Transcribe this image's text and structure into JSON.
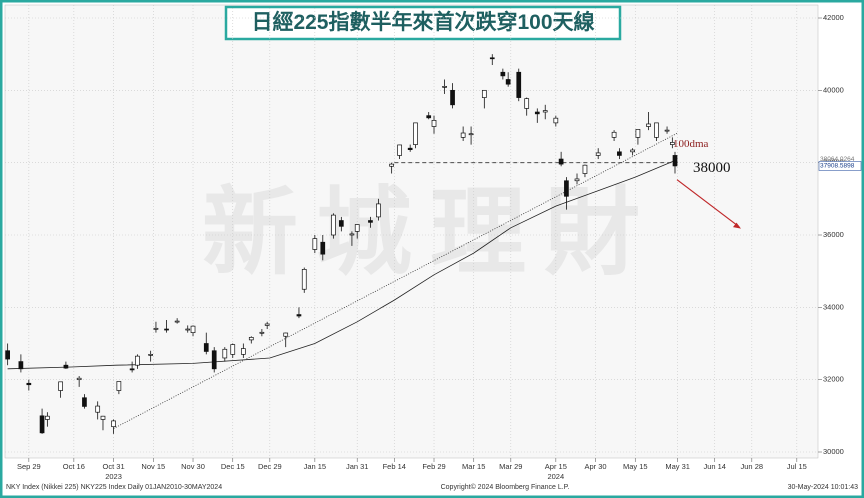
{
  "chart_data": {
    "type": "candlestick",
    "title": "日經225指數半年來首次跌穿100天線",
    "watermark": "新城理財",
    "x": [
      "2023-09-21",
      "2023-09-26",
      "2023-09-29",
      "2023-10-04",
      "2023-10-06",
      "2023-10-11",
      "2023-10-13",
      "2023-10-18",
      "2023-10-20",
      "2023-10-25",
      "2023-10-27",
      "2023-10-31",
      "2023-11-02",
      "2023-11-07",
      "2023-11-09",
      "2023-11-14",
      "2023-11-16",
      "2023-11-20",
      "2023-11-24",
      "2023-11-28",
      "2023-11-30",
      "2023-12-05",
      "2023-12-08",
      "2023-12-12",
      "2023-12-15",
      "2023-12-19",
      "2023-12-22",
      "2023-12-26",
      "2023-12-28",
      "2024-01-04",
      "2024-01-09",
      "2024-01-11",
      "2024-01-15",
      "2024-01-18",
      "2024-01-22",
      "2024-01-25",
      "2024-01-29",
      "2024-01-31",
      "2024-02-05",
      "2024-02-08",
      "2024-02-13",
      "2024-02-16",
      "2024-02-20",
      "2024-02-22",
      "2024-02-27",
      "2024-02-29",
      "2024-03-04",
      "2024-03-07",
      "2024-03-11",
      "2024-03-14",
      "2024-03-19",
      "2024-03-22",
      "2024-03-26",
      "2024-03-28",
      "2024-04-01",
      "2024-04-04",
      "2024-04-08",
      "2024-04-11",
      "2024-04-15",
      "2024-04-17",
      "2024-04-19",
      "2024-04-23",
      "2024-04-26",
      "2024-05-01",
      "2024-05-07",
      "2024-05-09",
      "2024-05-14",
      "2024-05-16",
      "2024-05-20",
      "2024-05-23",
      "2024-05-27",
      "2024-05-29",
      "2024-05-30"
    ],
    "open": [
      32800,
      32500,
      31900,
      31000,
      30900,
      31700,
      32400,
      32000,
      31500,
      31100,
      30900,
      30700,
      31700,
      32300,
      32400,
      32700,
      33400,
      33400,
      33600,
      33400,
      33300,
      33000,
      32800,
      32600,
      32700,
      32700,
      33100,
      33300,
      33500,
      33200,
      33800,
      34500,
      35600,
      35800,
      36000,
      36400,
      36000,
      36100,
      36400,
      36500,
      37900,
      38200,
      38400,
      38500,
      39300,
      39000,
      40100,
      40000,
      38700,
      38800,
      39800,
      40900,
      40500,
      40300,
      40500,
      39500,
      39400,
      39400,
      39100,
      38100,
      37500,
      37500,
      37700,
      38200,
      38700,
      38300,
      38300,
      38700,
      39000,
      38700,
      38900,
      38500,
      38200
    ],
    "high": [
      33000,
      32700,
      32000,
      31200,
      31100,
      31900,
      32500,
      32100,
      31600,
      31400,
      31000,
      30900,
      31950,
      32500,
      32700,
      32800,
      33600,
      33650,
      33700,
      33500,
      33500,
      33300,
      32900,
      32900,
      33000,
      33000,
      33200,
      33400,
      33600,
      33300,
      34000,
      35100,
      36000,
      36000,
      36600,
      36500,
      36100,
      36300,
      36500,
      37000,
      38000,
      38500,
      38500,
      39100,
      39400,
      39300,
      40300,
      40200,
      39000,
      39000,
      40000,
      41000,
      40600,
      40500,
      40600,
      39800,
      39500,
      39600,
      39300,
      38300,
      37600,
      37700,
      37950,
      38400,
      38900,
      38400,
      38400,
      38900,
      39400,
      39100,
      39000,
      38700,
      38300
    ],
    "low": [
      32400,
      32200,
      31700,
      30500,
      30700,
      31500,
      32300,
      31800,
      31200,
      30900,
      30600,
      30500,
      31600,
      32200,
      32300,
      32500,
      33300,
      33300,
      33550,
      33300,
      33200,
      32700,
      32200,
      32500,
      32600,
      32600,
      33000,
      33200,
      33400,
      32900,
      33700,
      34400,
      35500,
      35300,
      35900,
      36100,
      35700,
      35900,
      36200,
      36400,
      37700,
      38100,
      38300,
      38400,
      39200,
      38800,
      39900,
      39500,
      38600,
      38500,
      39500,
      40700,
      40300,
      40100,
      39700,
      39300,
      39100,
      39200,
      39000,
      37900,
      36700,
      37400,
      37600,
      38100,
      38600,
      38100,
      38200,
      38500,
      38900,
      38600,
      38800,
      38400,
      37700
    ],
    "close": [
      32570,
      32300,
      31860,
      30530,
      30990,
      31940,
      32320,
      32040,
      31260,
      31270,
      30990,
      30860,
      31950,
      32270,
      32650,
      32700,
      33420,
      33390,
      33620,
      33400,
      33480,
      32780,
      32300,
      32840,
      32970,
      32860,
      33170,
      33310,
      33540,
      33290,
      33760,
      35050,
      35900,
      35470,
      36550,
      36240,
      36030,
      36290,
      36350,
      36860,
      37960,
      38490,
      38360,
      39100,
      39240,
      39170,
      40110,
      39600,
      38820,
      38800,
      40000,
      40890,
      40400,
      40170,
      39800,
      39770,
      39350,
      39440,
      39230,
      37960,
      37070,
      37550,
      37930,
      38270,
      38840,
      38200,
      38350,
      38920,
      39070,
      39100,
      38900,
      38560,
      37910
    ],
    "ma": {
      "name": "100dma",
      "x": [
        "2023-09-21",
        "2023-10-15",
        "2023-11-01",
        "2023-11-30",
        "2023-12-29",
        "2024-01-15",
        "2024-01-31",
        "2024-02-14",
        "2024-02-29",
        "2024-03-15",
        "2024-03-29",
        "2024-04-15",
        "2024-04-30",
        "2024-05-15",
        "2024-05-30"
      ],
      "values": [
        32300,
        32350,
        32400,
        32450,
        32600,
        33000,
        33600,
        34200,
        34900,
        35500,
        36200,
        36800,
        37200,
        37600,
        38060
      ]
    },
    "trendline": {
      "x": [
        "2023-10-31",
        "2024-05-31"
      ],
      "values": [
        30650,
        38820
      ]
    },
    "level": {
      "value": 38000,
      "from": "2024-02-14",
      "to": "2024-05-31"
    },
    "price_tags": [
      38064.0264,
      37908.5898
    ],
    "ylim": [
      30000,
      42000
    ],
    "yticks": [
      30000,
      32000,
      34000,
      36000,
      38000,
      40000,
      42000
    ],
    "xlim": [
      "2023-09-20",
      "2024-07-23"
    ],
    "xticks": [
      {
        "value": "2023-09-29",
        "label": "Sep 29"
      },
      {
        "value": "2023-10-16",
        "label": "Oct 16"
      },
      {
        "value": "2023-10-31",
        "label": "Oct 31"
      },
      {
        "value": "2023-11-15",
        "label": "Nov 15"
      },
      {
        "value": "2023-11-30",
        "label": "Nov 30"
      },
      {
        "value": "2023-12-15",
        "label": "Dec 15"
      },
      {
        "value": "2023-12-29",
        "label": "Dec 29"
      },
      {
        "value": "2024-01-15",
        "label": "Jan 15"
      },
      {
        "value": "2024-01-31",
        "label": "Jan 31"
      },
      {
        "value": "2024-02-14",
        "label": "Feb 14"
      },
      {
        "value": "2024-02-29",
        "label": "Feb 29"
      },
      {
        "value": "2024-03-15",
        "label": "Mar 15"
      },
      {
        "value": "2024-03-29",
        "label": "Mar 29"
      },
      {
        "value": "2024-04-15",
        "label": "Apr 15"
      },
      {
        "value": "2024-04-30",
        "label": "Apr 30"
      },
      {
        "value": "2024-05-15",
        "label": "May 15"
      },
      {
        "value": "2024-05-31",
        "label": "May 31"
      },
      {
        "value": "2024-06-14",
        "label": "Jun 14"
      },
      {
        "value": "2024-06-28",
        "label": "Jun 28"
      },
      {
        "value": "2024-07-15",
        "label": "Jul 15"
      }
    ],
    "year_labels": [
      {
        "value": "2023-10-31",
        "label": "2023"
      },
      {
        "value": "2024-04-15",
        "label": "2024"
      }
    ],
    "grid": true,
    "footer": {
      "left": "NKY Index (Nikkei 225) NKY225 Index  Daily 01JAN2010-30MAY2024",
      "center": "Copyright© 2024 Bloomberg Finance L.P.",
      "right": "30-May-2024 10:01:43"
    }
  }
}
